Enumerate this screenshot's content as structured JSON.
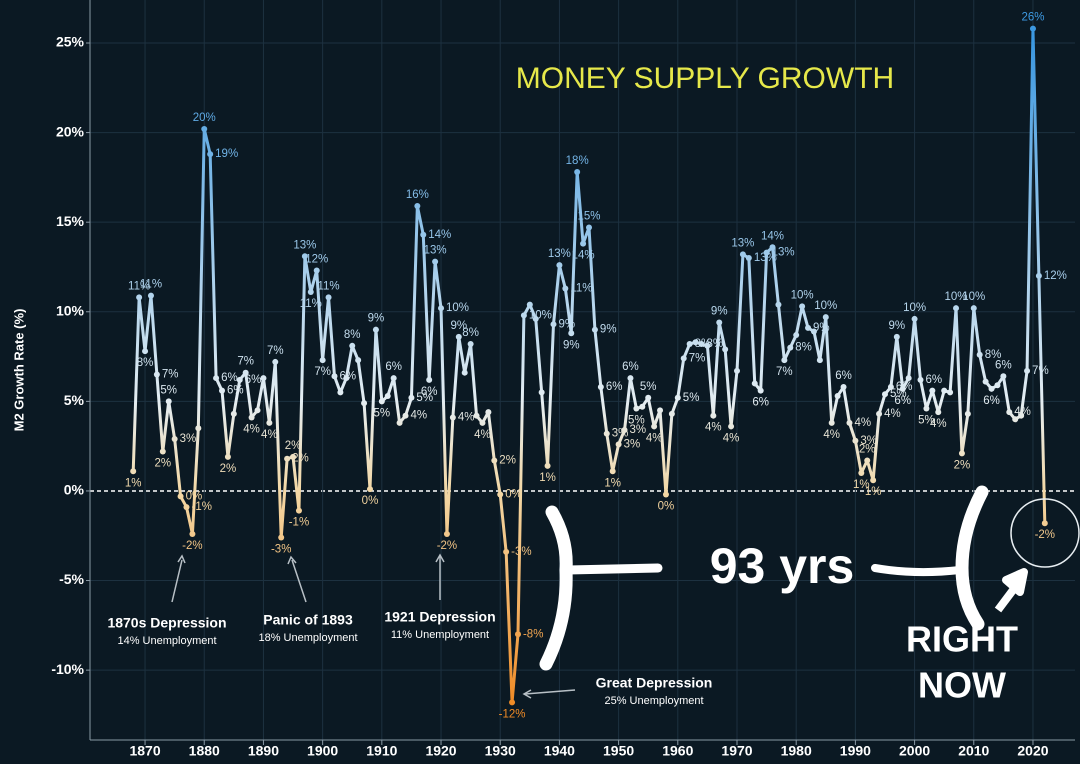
{
  "chart_data": {
    "type": "line",
    "title": "MONEY SUPPLY GROWTH",
    "y_label": "M2 Growth Rate (%)",
    "x": [
      1868,
      1869,
      1870,
      1871,
      1872,
      1873,
      1874,
      1875,
      1876,
      1877,
      1878,
      1879,
      1880,
      1881,
      1882,
      1883,
      1884,
      1885,
      1886,
      1887,
      1888,
      1889,
      1890,
      1891,
      1892,
      1893,
      1894,
      1895,
      1896,
      1897,
      1898,
      1899,
      1900,
      1901,
      1902,
      1903,
      1904,
      1905,
      1906,
      1907,
      1908,
      1909,
      1910,
      1911,
      1912,
      1913,
      1914,
      1915,
      1916,
      1917,
      1918,
      1919,
      1920,
      1921,
      1922,
      1923,
      1924,
      1925,
      1926,
      1927,
      1928,
      1929,
      1930,
      1931,
      1932,
      1933,
      1934,
      1935,
      1936,
      1937,
      1938,
      1939,
      1940,
      1941,
      1942,
      1943,
      1944,
      1945,
      1946,
      1947,
      1948,
      1949,
      1950,
      1951,
      1952,
      1953,
      1954,
      1955,
      1956,
      1957,
      1958,
      1959,
      1960,
      1961,
      1962,
      1963,
      1964,
      1965,
      1966,
      1967,
      1968,
      1969,
      1970,
      1971,
      1972,
      1973,
      1974,
      1975,
      1976,
      1977,
      1978,
      1979,
      1980,
      1981,
      1982,
      1983,
      1984,
      1985,
      1986,
      1987,
      1988,
      1989,
      1990,
      1991,
      1992,
      1993,
      1994,
      1995,
      1996,
      1997,
      1998,
      1999,
      2000,
      2001,
      2002,
      2003,
      2004,
      2005,
      2006,
      2007,
      2008,
      2009,
      2010,
      2011,
      2012,
      2013,
      2014,
      2015,
      2016,
      2017,
      2018,
      2019,
      2020,
      2021,
      2022
    ],
    "values": [
      1.1,
      10.8,
      7.8,
      10.9,
      6.5,
      2.2,
      5.0,
      2.9,
      -0.3,
      -0.9,
      -2.4,
      3.5,
      20.2,
      18.8,
      6.3,
      5.6,
      1.9,
      4.3,
      6.2,
      6.6,
      4.1,
      4.5,
      6.3,
      3.8,
      7.2,
      -2.6,
      1.8,
      1.9,
      -1.1,
      13.1,
      11.1,
      12.3,
      7.3,
      10.8,
      6.4,
      5.5,
      6.3,
      8.1,
      7.3,
      4.9,
      0.1,
      9.0,
      5.0,
      5.3,
      6.3,
      3.8,
      4.2,
      5.2,
      15.9,
      14.3,
      6.2,
      12.8,
      10.2,
      -2.4,
      4.1,
      8.6,
      6.6,
      8.2,
      4.2,
      3.8,
      4.4,
      1.7,
      -0.2,
      -3.4,
      -11.8,
      -8.0,
      9.8,
      10.4,
      9.6,
      5.5,
      1.4,
      9.3,
      12.6,
      11.3,
      8.8,
      17.8,
      13.8,
      14.7,
      9.0,
      5.8,
      3.2,
      1.1,
      2.6,
      3.4,
      6.3,
      4.6,
      4.7,
      5.2,
      3.6,
      4.5,
      -0.2,
      4.3,
      5.2,
      7.4,
      8.2,
      8.3,
      8.2,
      8.1,
      4.2,
      9.4,
      7.9,
      3.6,
      6.7,
      13.2,
      13.0,
      6.0,
      5.6,
      13.3,
      13.6,
      10.4,
      7.3,
      8.0,
      8.7,
      10.3,
      9.1,
      8.9,
      7.3,
      9.7,
      3.8,
      5.3,
      5.8,
      3.8,
      2.8,
      1.0,
      1.7,
      0.6,
      4.3,
      5.4,
      5.8,
      8.6,
      5.7,
      6.3,
      9.6,
      6.2,
      4.6,
      5.6,
      4.4,
      5.6,
      5.5,
      10.2,
      2.1,
      4.3,
      10.2,
      7.6,
      6.1,
      5.7,
      5.9,
      6.4,
      4.4,
      4.0,
      4.2,
      6.7,
      25.8,
      12.0,
      -1.8
    ],
    "value_labels": [
      "1%",
      "11%",
      "8%",
      "11%",
      "7%",
      "2%",
      "5%",
      "3%",
      "0%",
      "-1%",
      "-2%",
      null,
      "20%",
      "19%",
      "6%",
      "6%",
      "2%",
      null,
      "6%",
      "7%",
      "4%",
      null,
      null,
      "4%",
      "7%",
      "-3%",
      "2%",
      "2%",
      "-1%",
      "13%",
      "11%",
      "12%",
      "7%",
      "11%",
      "6%",
      null,
      null,
      "8%",
      null,
      null,
      "0%",
      "9%",
      "5%",
      null,
      "6%",
      null,
      "4%",
      "5%",
      "16%",
      "14%",
      "6%",
      "13%",
      "10%",
      "-2%",
      "4%",
      "9%",
      null,
      "8%",
      null,
      "4%",
      null,
      "2%",
      "0%",
      "-3%",
      "-12%",
      "-8%",
      "10%",
      null,
      null,
      null,
      "1%",
      "9%",
      "13%",
      "11%",
      "9%",
      "18%",
      "14%",
      "15%",
      "9%",
      "6%",
      "3%",
      "1%",
      "3%",
      "3%",
      "6%",
      "5%",
      null,
      "5%",
      "4%",
      null,
      "0%",
      null,
      "5%",
      "7%",
      "8%",
      null,
      "8%",
      null,
      "4%",
      "9%",
      null,
      "4%",
      null,
      "13%",
      "13%",
      null,
      "6%",
      "13%",
      "14%",
      null,
      "7%",
      "8%",
      null,
      "10%",
      "9%",
      null,
      null,
      "10%",
      "4%",
      null,
      "6%",
      "4%",
      "3%",
      "1%",
      "2%",
      "1%",
      "4%",
      "5%",
      "6%",
      "9%",
      "6%",
      null,
      "10%",
      "6%",
      "5%",
      null,
      "4%",
      null,
      null,
      "10%",
      "2%",
      null,
      "10%",
      "8%",
      null,
      "6%",
      null,
      "6%",
      "4%",
      null,
      null,
      "7%",
      "26%",
      "12%",
      "-2%"
    ],
    "color_stops": [
      {
        "value": -12,
        "color": "#f08a24"
      },
      {
        "value": 0,
        "color": "#f3d8a6"
      },
      {
        "value": 5,
        "color": "#e4edf2"
      },
      {
        "value": 25,
        "color": "#3c98e0"
      }
    ],
    "xlim": [
      1860.7,
      2027.1
    ],
    "ylim": [
      -13.9,
      27.4
    ],
    "xticks": [
      1870,
      1880,
      1890,
      1900,
      1910,
      1920,
      1930,
      1940,
      1950,
      1960,
      1970,
      1980,
      1990,
      2000,
      2010,
      2020
    ],
    "yticks": [
      {
        "value": -10,
        "label": "-10%"
      },
      {
        "value": -5,
        "label": "-5%"
      },
      {
        "value": 0,
        "label": "0%"
      },
      {
        "value": 5,
        "label": "5%"
      },
      {
        "value": 10,
        "label": "10%"
      },
      {
        "value": 15,
        "label": "15%"
      },
      {
        "value": 20,
        "label": "20%"
      },
      {
        "value": 25,
        "label": "25%"
      }
    ],
    "grid": true,
    "annotations": [
      {
        "text": "1870s Depression",
        "note": "14% Unemployment"
      },
      {
        "text": "Panic of 1893",
        "note": "18% Unemployment"
      },
      {
        "text": "1921 Depression",
        "note": "11% Unemployment"
      },
      {
        "text": "Great Depression",
        "note": "25% Unemployment"
      }
    ],
    "span_label": "93 yrs",
    "callout": [
      "RIGHT",
      "NOW"
    ]
  }
}
